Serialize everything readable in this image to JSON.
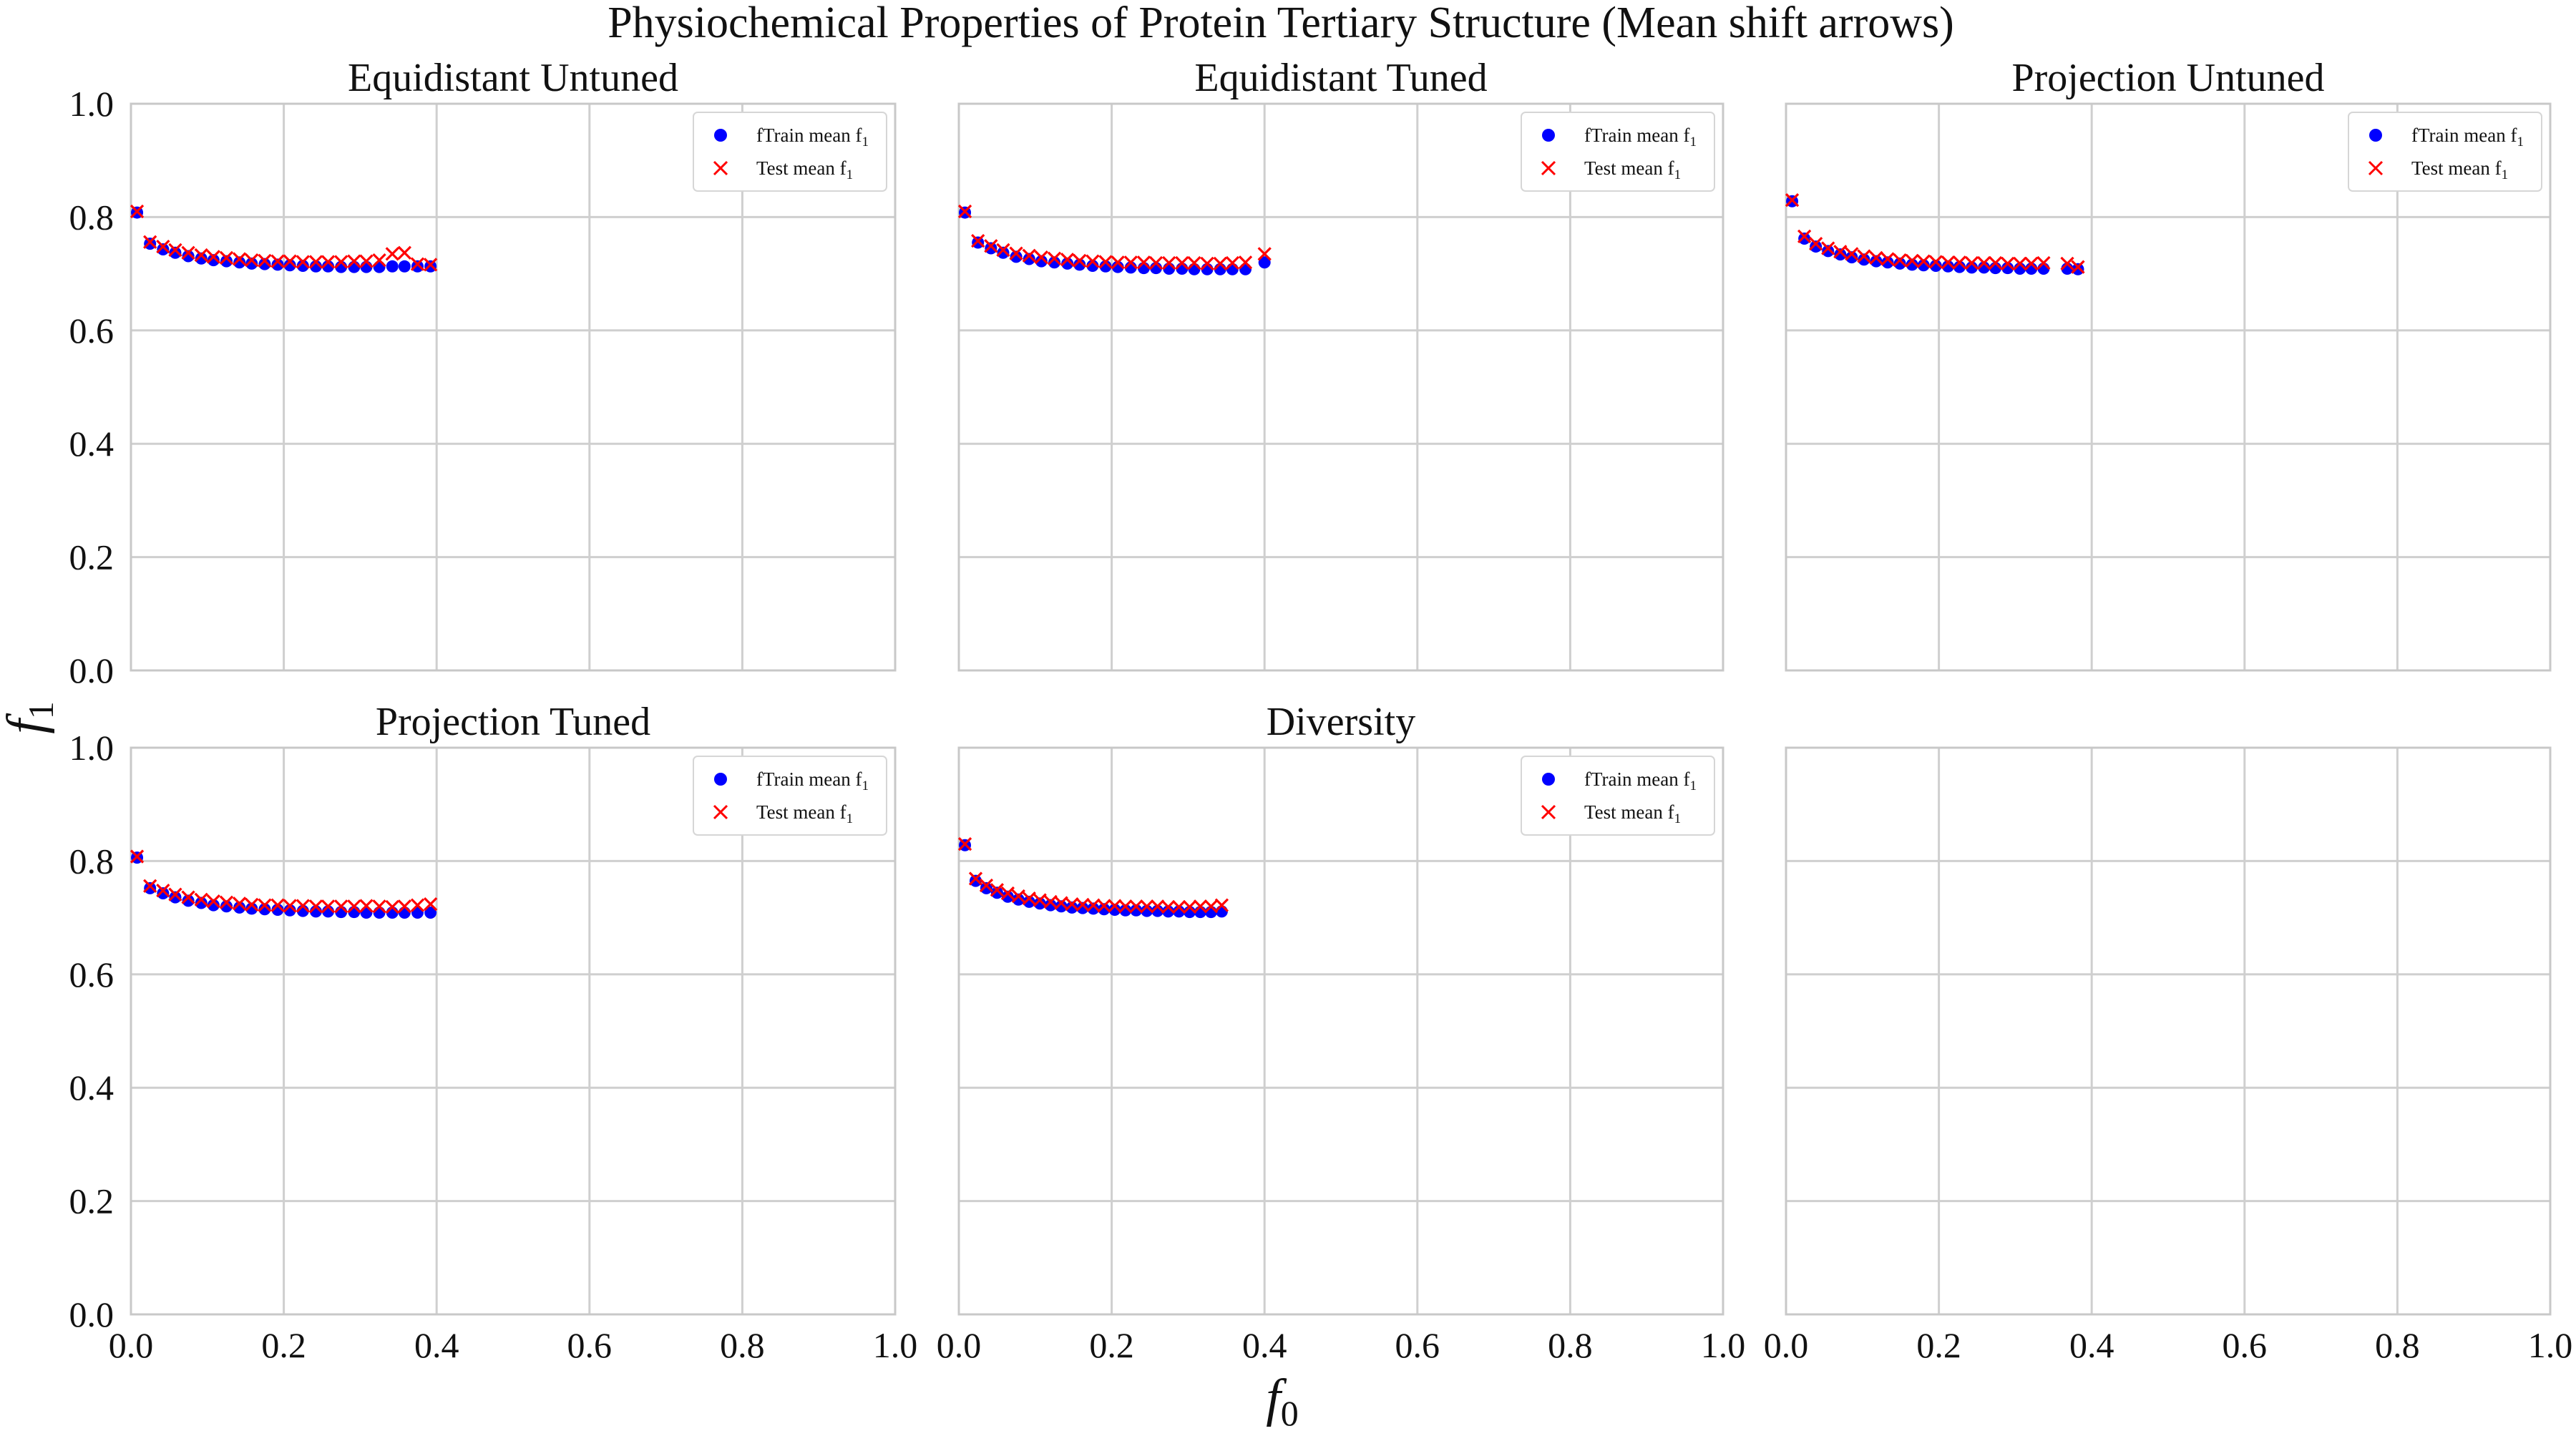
{
  "figure": {
    "title": "Physiochemical Properties of Protein Tertiary Structure (Mean shift arrows)",
    "xlabel": "f",
    "xlabel_sub": "0",
    "ylabel": "f",
    "ylabel_sub": "1"
  },
  "colors": {
    "train": "#0000ff",
    "test": "#ff0000",
    "grid": "#cfcfcf",
    "text": "#111111"
  },
  "chart_data": [
    {
      "type": "scatter",
      "title": "Equidistant Untuned",
      "xlim": [
        0,
        1
      ],
      "ylim": [
        0,
        1
      ],
      "xticks": [
        "0.0",
        "0.2",
        "0.4",
        "0.6",
        "0.8",
        "1.0"
      ],
      "yticks": [
        "0.0",
        "0.2",
        "0.4",
        "0.6",
        "0.8",
        "1.0"
      ],
      "grid": true,
      "legend": "top-right",
      "series": [
        {
          "name": "fTrain mean f₁",
          "marker": "circle",
          "x": [
            0.008,
            0.025,
            0.042,
            0.058,
            0.075,
            0.092,
            0.108,
            0.125,
            0.142,
            0.158,
            0.175,
            0.192,
            0.208,
            0.225,
            0.242,
            0.258,
            0.275,
            0.292,
            0.308,
            0.325,
            0.342,
            0.358,
            0.375,
            0.392
          ],
          "y": [
            0.808,
            0.753,
            0.743,
            0.737,
            0.731,
            0.727,
            0.724,
            0.722,
            0.72,
            0.718,
            0.717,
            0.716,
            0.715,
            0.714,
            0.713,
            0.713,
            0.712,
            0.712,
            0.712,
            0.712,
            0.713,
            0.713,
            0.713,
            0.713
          ]
        },
        {
          "name": "Test mean f₁",
          "marker": "x",
          "x": [
            0.008,
            0.025,
            0.042,
            0.058,
            0.075,
            0.092,
            0.108,
            0.125,
            0.142,
            0.158,
            0.175,
            0.192,
            0.208,
            0.225,
            0.242,
            0.258,
            0.275,
            0.292,
            0.308,
            0.325,
            0.342,
            0.358,
            0.375,
            0.392
          ],
          "y": [
            0.81,
            0.756,
            0.748,
            0.742,
            0.737,
            0.733,
            0.73,
            0.728,
            0.726,
            0.724,
            0.723,
            0.722,
            0.722,
            0.721,
            0.721,
            0.721,
            0.721,
            0.722,
            0.722,
            0.724,
            0.735,
            0.737,
            0.717,
            0.716
          ]
        }
      ]
    },
    {
      "type": "scatter",
      "title": "Equidistant Tuned",
      "xlim": [
        0,
        1
      ],
      "ylim": [
        0,
        1
      ],
      "xticks": [
        "0.0",
        "0.2",
        "0.4",
        "0.6",
        "0.8",
        "1.0"
      ],
      "yticks": [
        "0.0",
        "0.2",
        "0.4",
        "0.6",
        "0.8",
        "1.0"
      ],
      "grid": true,
      "legend": "top-right",
      "series": [
        {
          "name": "fTrain mean f₁",
          "marker": "circle",
          "x": [
            0.008,
            0.025,
            0.042,
            0.058,
            0.075,
            0.092,
            0.108,
            0.125,
            0.142,
            0.158,
            0.175,
            0.192,
            0.208,
            0.225,
            0.242,
            0.258,
            0.275,
            0.292,
            0.308,
            0.325,
            0.342,
            0.358,
            0.375,
            0.4
          ],
          "y": [
            0.808,
            0.755,
            0.745,
            0.737,
            0.73,
            0.726,
            0.722,
            0.72,
            0.718,
            0.716,
            0.714,
            0.713,
            0.712,
            0.711,
            0.71,
            0.71,
            0.709,
            0.709,
            0.708,
            0.708,
            0.708,
            0.708,
            0.708,
            0.72
          ]
        },
        {
          "name": "Test mean f₁",
          "marker": "x",
          "x": [
            0.008,
            0.025,
            0.042,
            0.058,
            0.075,
            0.092,
            0.108,
            0.125,
            0.142,
            0.158,
            0.175,
            0.192,
            0.208,
            0.225,
            0.242,
            0.258,
            0.275,
            0.292,
            0.308,
            0.325,
            0.342,
            0.358,
            0.375,
            0.4
          ],
          "y": [
            0.81,
            0.758,
            0.749,
            0.742,
            0.736,
            0.732,
            0.729,
            0.727,
            0.725,
            0.723,
            0.722,
            0.721,
            0.72,
            0.72,
            0.72,
            0.719,
            0.719,
            0.719,
            0.719,
            0.718,
            0.718,
            0.719,
            0.72,
            0.735
          ]
        }
      ]
    },
    {
      "type": "scatter",
      "title": "Projection Untuned",
      "xlim": [
        0,
        1
      ],
      "ylim": [
        0,
        1
      ],
      "xticks": [
        "0.0",
        "0.2",
        "0.4",
        "0.6",
        "0.8",
        "1.0"
      ],
      "yticks": [
        "0.0",
        "0.2",
        "0.4",
        "0.6",
        "0.8",
        "1.0"
      ],
      "grid": true,
      "legend": "top-right",
      "series": [
        {
          "name": "fTrain mean f₁",
          "marker": "circle",
          "x": [
            0.008,
            0.024,
            0.039,
            0.055,
            0.071,
            0.086,
            0.102,
            0.118,
            0.133,
            0.149,
            0.165,
            0.18,
            0.196,
            0.212,
            0.227,
            0.243,
            0.259,
            0.274,
            0.29,
            0.306,
            0.321,
            0.337,
            0.368,
            0.382
          ],
          "y": [
            0.828,
            0.762,
            0.748,
            0.74,
            0.734,
            0.729,
            0.725,
            0.722,
            0.72,
            0.718,
            0.716,
            0.715,
            0.714,
            0.713,
            0.712,
            0.711,
            0.711,
            0.71,
            0.71,
            0.709,
            0.709,
            0.709,
            0.709,
            0.708
          ]
        },
        {
          "name": "Test mean f₁",
          "marker": "x",
          "x": [
            0.008,
            0.024,
            0.039,
            0.055,
            0.071,
            0.086,
            0.102,
            0.118,
            0.133,
            0.149,
            0.165,
            0.18,
            0.196,
            0.212,
            0.227,
            0.243,
            0.259,
            0.274,
            0.29,
            0.306,
            0.321,
            0.337,
            0.368,
            0.382
          ],
          "y": [
            0.83,
            0.766,
            0.753,
            0.745,
            0.739,
            0.735,
            0.731,
            0.728,
            0.726,
            0.724,
            0.723,
            0.722,
            0.721,
            0.72,
            0.72,
            0.719,
            0.719,
            0.719,
            0.718,
            0.718,
            0.718,
            0.719,
            0.718,
            0.712
          ]
        }
      ]
    },
    {
      "type": "scatter",
      "title": "Projection Tuned",
      "xlim": [
        0,
        1
      ],
      "ylim": [
        0,
        1
      ],
      "xticks": [
        "0.0",
        "0.2",
        "0.4",
        "0.6",
        "0.8",
        "1.0"
      ],
      "yticks": [
        "0.0",
        "0.2",
        "0.4",
        "0.6",
        "0.8",
        "1.0"
      ],
      "grid": true,
      "legend": "top-right",
      "series": [
        {
          "name": "fTrain mean f₁",
          "marker": "circle",
          "x": [
            0.008,
            0.025,
            0.042,
            0.058,
            0.075,
            0.092,
            0.108,
            0.125,
            0.142,
            0.158,
            0.175,
            0.192,
            0.208,
            0.225,
            0.242,
            0.258,
            0.275,
            0.292,
            0.308,
            0.325,
            0.342,
            0.358,
            0.375,
            0.392
          ],
          "y": [
            0.806,
            0.752,
            0.743,
            0.736,
            0.73,
            0.726,
            0.722,
            0.72,
            0.718,
            0.716,
            0.715,
            0.714,
            0.713,
            0.712,
            0.711,
            0.711,
            0.71,
            0.71,
            0.709,
            0.709,
            0.709,
            0.709,
            0.709,
            0.709
          ]
        },
        {
          "name": "Test mean f₁",
          "marker": "x",
          "x": [
            0.008,
            0.025,
            0.042,
            0.058,
            0.075,
            0.092,
            0.108,
            0.125,
            0.142,
            0.158,
            0.175,
            0.192,
            0.208,
            0.225,
            0.242,
            0.258,
            0.275,
            0.292,
            0.308,
            0.325,
            0.342,
            0.358,
            0.375,
            0.392
          ],
          "y": [
            0.808,
            0.756,
            0.748,
            0.741,
            0.736,
            0.732,
            0.729,
            0.727,
            0.725,
            0.723,
            0.722,
            0.722,
            0.721,
            0.721,
            0.72,
            0.72,
            0.72,
            0.72,
            0.721,
            0.72,
            0.719,
            0.72,
            0.722,
            0.724
          ]
        }
      ]
    },
    {
      "type": "scatter",
      "title": "Diversity",
      "xlim": [
        0,
        1
      ],
      "ylim": [
        0,
        1
      ],
      "xticks": [
        "0.0",
        "0.2",
        "0.4",
        "0.6",
        "0.8",
        "1.0"
      ],
      "yticks": [
        "0.0",
        "0.2",
        "0.4",
        "0.6",
        "0.8",
        "1.0"
      ],
      "grid": true,
      "legend": "top-right",
      "series": [
        {
          "name": "fTrain mean f₁",
          "marker": "circle",
          "x": [
            0.008,
            0.022,
            0.036,
            0.05,
            0.064,
            0.078,
            0.092,
            0.106,
            0.12,
            0.134,
            0.148,
            0.162,
            0.176,
            0.19,
            0.204,
            0.218,
            0.232,
            0.246,
            0.26,
            0.274,
            0.288,
            0.302,
            0.316,
            0.33,
            0.344
          ],
          "y": [
            0.828,
            0.765,
            0.752,
            0.744,
            0.737,
            0.732,
            0.728,
            0.725,
            0.722,
            0.72,
            0.718,
            0.717,
            0.716,
            0.715,
            0.714,
            0.713,
            0.713,
            0.712,
            0.712,
            0.711,
            0.711,
            0.71,
            0.71,
            0.71,
            0.711
          ]
        },
        {
          "name": "Test mean f₁",
          "marker": "x",
          "x": [
            0.008,
            0.022,
            0.036,
            0.05,
            0.064,
            0.078,
            0.092,
            0.106,
            0.12,
            0.134,
            0.148,
            0.162,
            0.176,
            0.19,
            0.204,
            0.218,
            0.232,
            0.246,
            0.26,
            0.274,
            0.288,
            0.302,
            0.316,
            0.33,
            0.344
          ],
          "y": [
            0.83,
            0.769,
            0.757,
            0.749,
            0.743,
            0.738,
            0.734,
            0.731,
            0.728,
            0.726,
            0.724,
            0.723,
            0.722,
            0.721,
            0.721,
            0.72,
            0.72,
            0.72,
            0.72,
            0.719,
            0.719,
            0.719,
            0.72,
            0.72,
            0.722
          ]
        }
      ]
    },
    {
      "type": "scatter",
      "title": "",
      "xlim": [
        0,
        1
      ],
      "ylim": [
        0,
        1
      ],
      "xticks": [
        "0.0",
        "0.2",
        "0.4",
        "0.6",
        "0.8",
        "1.0"
      ],
      "yticks": [
        "0.0",
        "0.2",
        "0.4",
        "0.6",
        "0.8",
        "1.0"
      ],
      "grid": true,
      "legend": "none",
      "series": []
    }
  ]
}
